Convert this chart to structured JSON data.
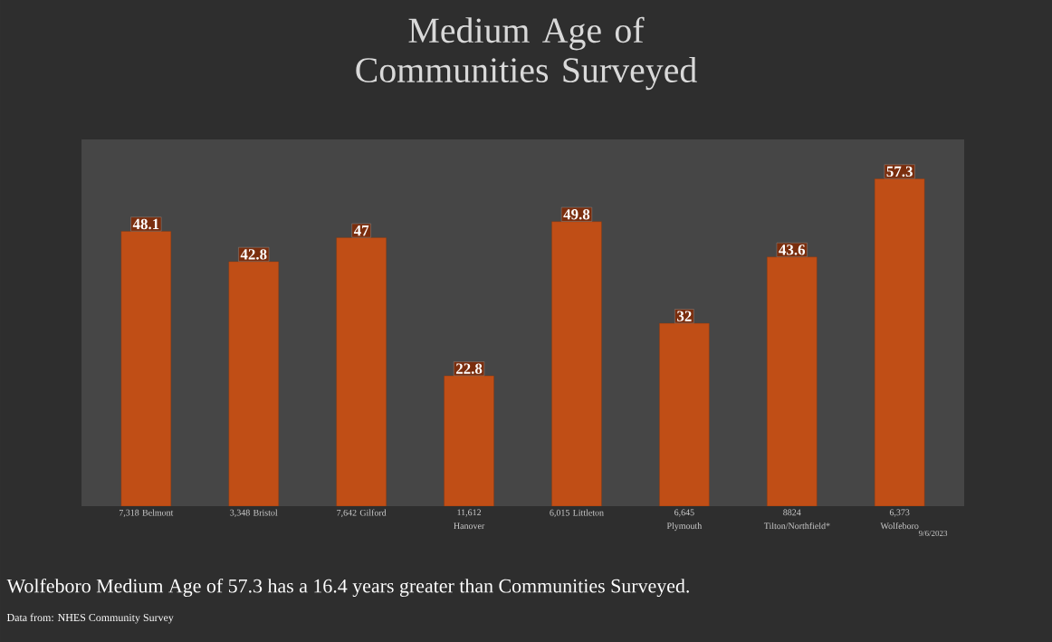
{
  "chart_data": {
    "type": "bar",
    "title": "Medium Age of Communities Surveyed",
    "categories": [
      "7,318 Belmont",
      "3,348 Bristol",
      "7,642 Gilford",
      "11,612 Hanover",
      "6,015 Littleton",
      "6,645 Plymouth",
      "8824 Tilton/Northfield*",
      "6,373 Wolfeboro"
    ],
    "values": [
      48.1,
      42.8,
      47,
      22.8,
      49.8,
      32,
      43.6,
      57.3
    ],
    "color": "#c04e16",
    "data_labels": true,
    "annotations": [
      "9/6/2023",
      "Wolfeboro Medium Age of 57.3 has a 16.4 years greater than Communities Surveyed.",
      "Data from: NHES Community Survey"
    ]
  }
}
